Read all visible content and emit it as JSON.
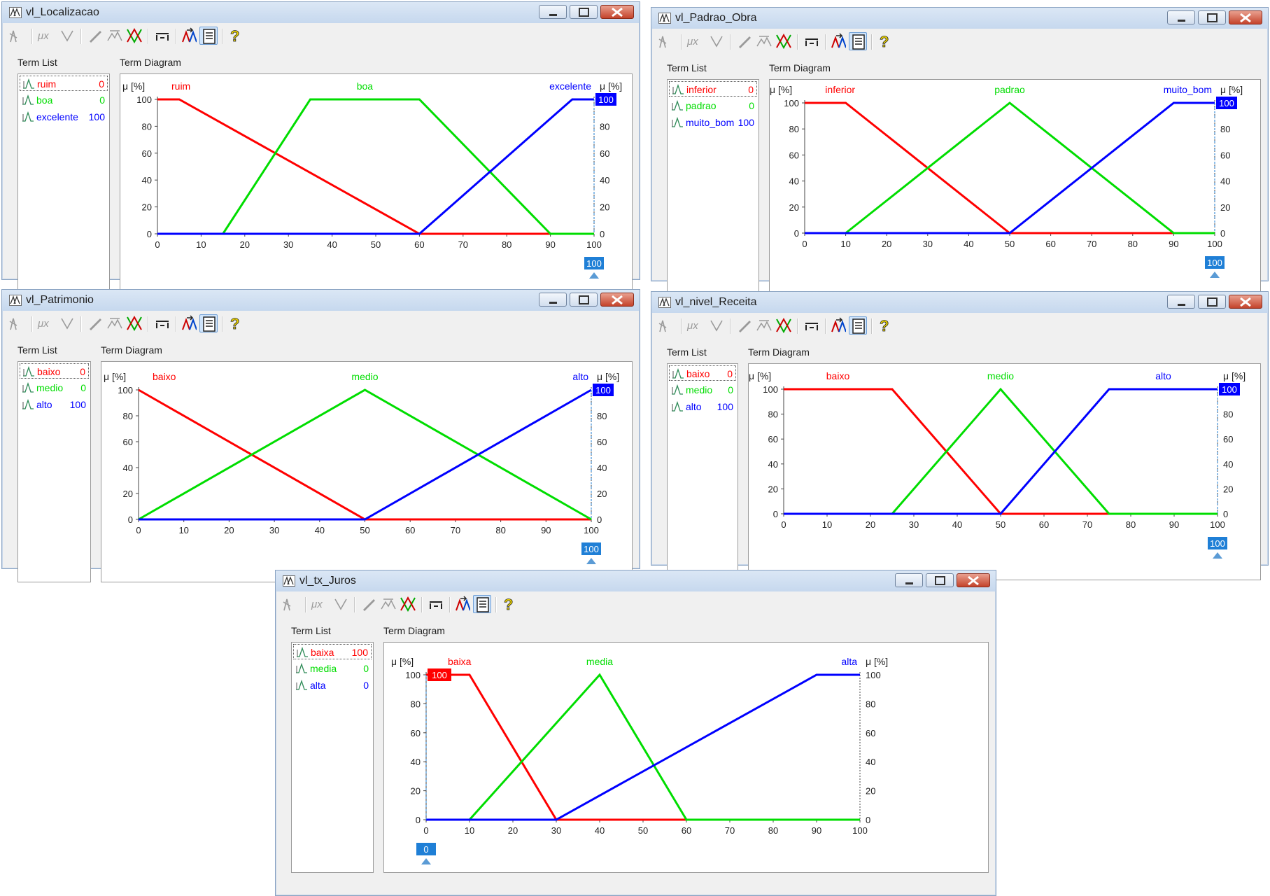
{
  "labels": {
    "term_list": "Term List",
    "term_diagram": "Term Diagram",
    "mu": "μ [%]"
  },
  "colors": {
    "term1": "#ff0000",
    "term2": "#00dd00",
    "term3": "#0000ff",
    "cursor": "#1f7fd6"
  },
  "windows": [
    {
      "id": "localizacao",
      "title": "vl_Localizacao",
      "terms": [
        {
          "name": "ruim",
          "value": "0",
          "color": "#ff0000"
        },
        {
          "name": "boa",
          "value": "0",
          "color": "#00dd00"
        },
        {
          "name": "excelente",
          "value": "100",
          "color": "#0000ff"
        }
      ],
      "selected_term": 0,
      "cursor": {
        "value": 100,
        "label": "100"
      },
      "chart_data": {
        "type": "line",
        "x_ticks": [
          0,
          10,
          20,
          30,
          40,
          50,
          60,
          70,
          80,
          90,
          100
        ],
        "y_ticks": [
          0,
          20,
          40,
          60,
          80,
          100
        ],
        "xlim": [
          0,
          100
        ],
        "ylim": [
          0,
          100
        ],
        "series": [
          {
            "name": "ruim",
            "color": "#ff0000",
            "points": [
              [
                0,
                100
              ],
              [
                5,
                100
              ],
              [
                60,
                0
              ],
              [
                100,
                0
              ]
            ]
          },
          {
            "name": "boa",
            "color": "#00dd00",
            "points": [
              [
                15,
                0
              ],
              [
                35,
                100
              ],
              [
                60,
                100
              ],
              [
                90,
                0
              ],
              [
                100,
                0
              ]
            ]
          },
          {
            "name": "excelente",
            "color": "#0000ff",
            "points": [
              [
                0,
                0
              ],
              [
                60,
                0
              ],
              [
                95,
                100
              ],
              [
                100,
                100
              ]
            ]
          }
        ],
        "right_badge": {
          "label": "100",
          "color": "#0000ff"
        }
      }
    },
    {
      "id": "padrao_obra",
      "title": "vl_Padrao_Obra",
      "terms": [
        {
          "name": "inferior",
          "value": "0",
          "color": "#ff0000"
        },
        {
          "name": "padrao",
          "value": "0",
          "color": "#00dd00"
        },
        {
          "name": "muito_bom",
          "value": "100",
          "color": "#0000ff"
        }
      ],
      "selected_term": 0,
      "cursor": {
        "value": 100,
        "label": "100"
      },
      "chart_data": {
        "type": "line",
        "x_ticks": [
          0,
          10,
          20,
          30,
          40,
          50,
          60,
          70,
          80,
          90,
          100
        ],
        "y_ticks": [
          0,
          20,
          40,
          60,
          80,
          100
        ],
        "xlim": [
          0,
          100
        ],
        "ylim": [
          0,
          100
        ],
        "series": [
          {
            "name": "inferior",
            "color": "#ff0000",
            "points": [
              [
                0,
                100
              ],
              [
                10,
                100
              ],
              [
                50,
                0
              ],
              [
                100,
                0
              ]
            ]
          },
          {
            "name": "padrao",
            "color": "#00dd00",
            "points": [
              [
                10,
                0
              ],
              [
                50,
                100
              ],
              [
                90,
                0
              ],
              [
                100,
                0
              ]
            ]
          },
          {
            "name": "muito_bom",
            "color": "#0000ff",
            "points": [
              [
                0,
                0
              ],
              [
                50,
                0
              ],
              [
                90,
                100
              ],
              [
                100,
                100
              ]
            ]
          }
        ],
        "right_badge": {
          "label": "100",
          "color": "#0000ff"
        }
      }
    },
    {
      "id": "patrimonio",
      "title": "vl_Patrimonio",
      "terms": [
        {
          "name": "baixo",
          "value": "0",
          "color": "#ff0000"
        },
        {
          "name": "medio",
          "value": "0",
          "color": "#00dd00"
        },
        {
          "name": "alto",
          "value": "100",
          "color": "#0000ff"
        }
      ],
      "selected_term": 0,
      "cursor": {
        "value": 100,
        "label": "100"
      },
      "chart_data": {
        "type": "line",
        "x_ticks": [
          0,
          10,
          20,
          30,
          40,
          50,
          60,
          70,
          80,
          90,
          100
        ],
        "y_ticks": [
          0,
          20,
          40,
          60,
          80,
          100
        ],
        "xlim": [
          0,
          100
        ],
        "ylim": [
          0,
          100
        ],
        "series": [
          {
            "name": "baixo",
            "color": "#ff0000",
            "points": [
              [
                0,
                100
              ],
              [
                50,
                0
              ],
              [
                100,
                0
              ]
            ]
          },
          {
            "name": "medio",
            "color": "#00dd00",
            "points": [
              [
                0,
                0
              ],
              [
                50,
                100
              ],
              [
                100,
                0
              ]
            ]
          },
          {
            "name": "alto",
            "color": "#0000ff",
            "points": [
              [
                0,
                0
              ],
              [
                50,
                0
              ],
              [
                100,
                100
              ]
            ]
          }
        ],
        "right_badge": {
          "label": "100",
          "color": "#0000ff"
        }
      }
    },
    {
      "id": "nivel_receita",
      "title": "vl_nivel_Receita",
      "terms": [
        {
          "name": "baixo",
          "value": "0",
          "color": "#ff0000"
        },
        {
          "name": "medio",
          "value": "0",
          "color": "#00dd00"
        },
        {
          "name": "alto",
          "value": "100",
          "color": "#0000ff"
        }
      ],
      "selected_term": 0,
      "cursor": {
        "value": 100,
        "label": "100"
      },
      "chart_data": {
        "type": "line",
        "x_ticks": [
          0,
          10,
          20,
          30,
          40,
          50,
          60,
          70,
          80,
          90,
          100
        ],
        "y_ticks": [
          0,
          20,
          40,
          60,
          80,
          100
        ],
        "xlim": [
          0,
          100
        ],
        "ylim": [
          0,
          100
        ],
        "series": [
          {
            "name": "baixo",
            "color": "#ff0000",
            "points": [
              [
                0,
                100
              ],
              [
                25,
                100
              ],
              [
                50,
                0
              ],
              [
                100,
                0
              ]
            ]
          },
          {
            "name": "medio",
            "color": "#00dd00",
            "points": [
              [
                25,
                0
              ],
              [
                50,
                100
              ],
              [
                75,
                0
              ],
              [
                100,
                0
              ]
            ]
          },
          {
            "name": "alto",
            "color": "#0000ff",
            "points": [
              [
                0,
                0
              ],
              [
                50,
                0
              ],
              [
                75,
                100
              ],
              [
                100,
                100
              ]
            ]
          }
        ],
        "right_badge": {
          "label": "100",
          "color": "#0000ff"
        }
      }
    },
    {
      "id": "tx_juros",
      "title": "vl_tx_Juros",
      "terms": [
        {
          "name": "baixa",
          "value": "100",
          "color": "#ff0000"
        },
        {
          "name": "media",
          "value": "0",
          "color": "#00dd00"
        },
        {
          "name": "alta",
          "value": "0",
          "color": "#0000ff"
        }
      ],
      "selected_term": 0,
      "cursor": {
        "value": 0,
        "label": "0"
      },
      "chart_data": {
        "type": "line",
        "x_ticks": [
          0,
          10,
          20,
          30,
          40,
          50,
          60,
          70,
          80,
          90,
          100
        ],
        "y_ticks": [
          0,
          20,
          40,
          60,
          80,
          100
        ],
        "xlim": [
          0,
          100
        ],
        "ylim": [
          0,
          100
        ],
        "series": [
          {
            "name": "baixa",
            "color": "#ff0000",
            "points": [
              [
                0,
                100
              ],
              [
                10,
                100
              ],
              [
                30,
                0
              ],
              [
                100,
                0
              ]
            ]
          },
          {
            "name": "media",
            "color": "#00dd00",
            "points": [
              [
                10,
                0
              ],
              [
                40,
                100
              ],
              [
                60,
                0
              ],
              [
                100,
                0
              ]
            ]
          },
          {
            "name": "alta",
            "color": "#0000ff",
            "points": [
              [
                0,
                0
              ],
              [
                30,
                0
              ],
              [
                90,
                100
              ],
              [
                100,
                100
              ]
            ]
          }
        ],
        "left_badge": {
          "label": "100",
          "color": "#ff0000"
        }
      }
    }
  ]
}
